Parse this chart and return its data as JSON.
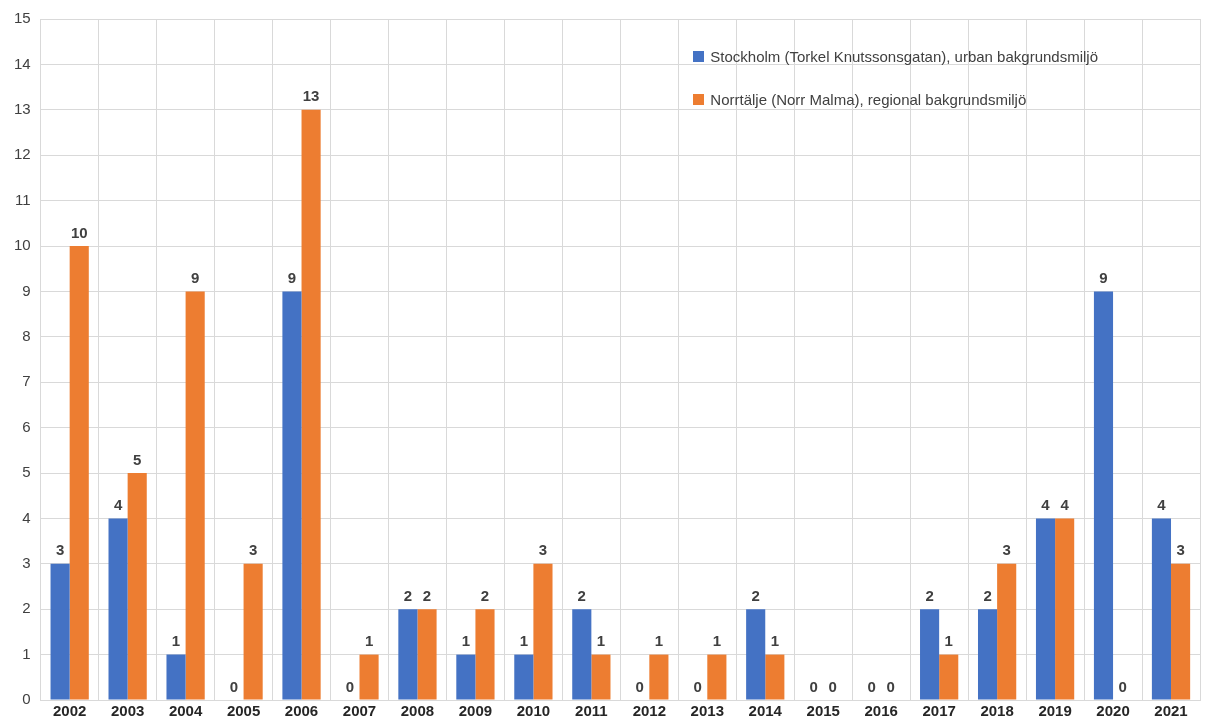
{
  "chart_data": {
    "type": "bar",
    "categories": [
      "2002",
      "2003",
      "2004",
      "2005",
      "2006",
      "2007",
      "2008",
      "2009",
      "2010",
      "2011",
      "2012",
      "2013",
      "2014",
      "2015",
      "2016",
      "2017",
      "2018",
      "2019",
      "2020",
      "2021"
    ],
    "series": [
      {
        "name": "Stockholm (Torkel Knutssonsgatan), urban bakgrundsmiljö",
        "color": "#4472c4",
        "values": [
          3,
          4,
          1,
          0,
          9,
          0,
          2,
          1,
          1,
          2,
          0,
          0,
          2,
          0,
          0,
          2,
          2,
          4,
          9,
          4
        ]
      },
      {
        "name": "Norrtälje (Norr Malma), regional bakgrundsmiljö",
        "color": "#ed7d31",
        "values": [
          10,
          5,
          9,
          3,
          13,
          1,
          2,
          2,
          3,
          1,
          1,
          1,
          1,
          0,
          0,
          1,
          3,
          4,
          0,
          3
        ]
      }
    ],
    "ylim": [
      0,
      15
    ],
    "yticks": [
      0,
      1,
      2,
      3,
      4,
      5,
      6,
      7,
      8,
      9,
      10,
      11,
      12,
      13,
      14,
      15
    ],
    "grid": true,
    "legend": "top right",
    "data_labels": true
  }
}
